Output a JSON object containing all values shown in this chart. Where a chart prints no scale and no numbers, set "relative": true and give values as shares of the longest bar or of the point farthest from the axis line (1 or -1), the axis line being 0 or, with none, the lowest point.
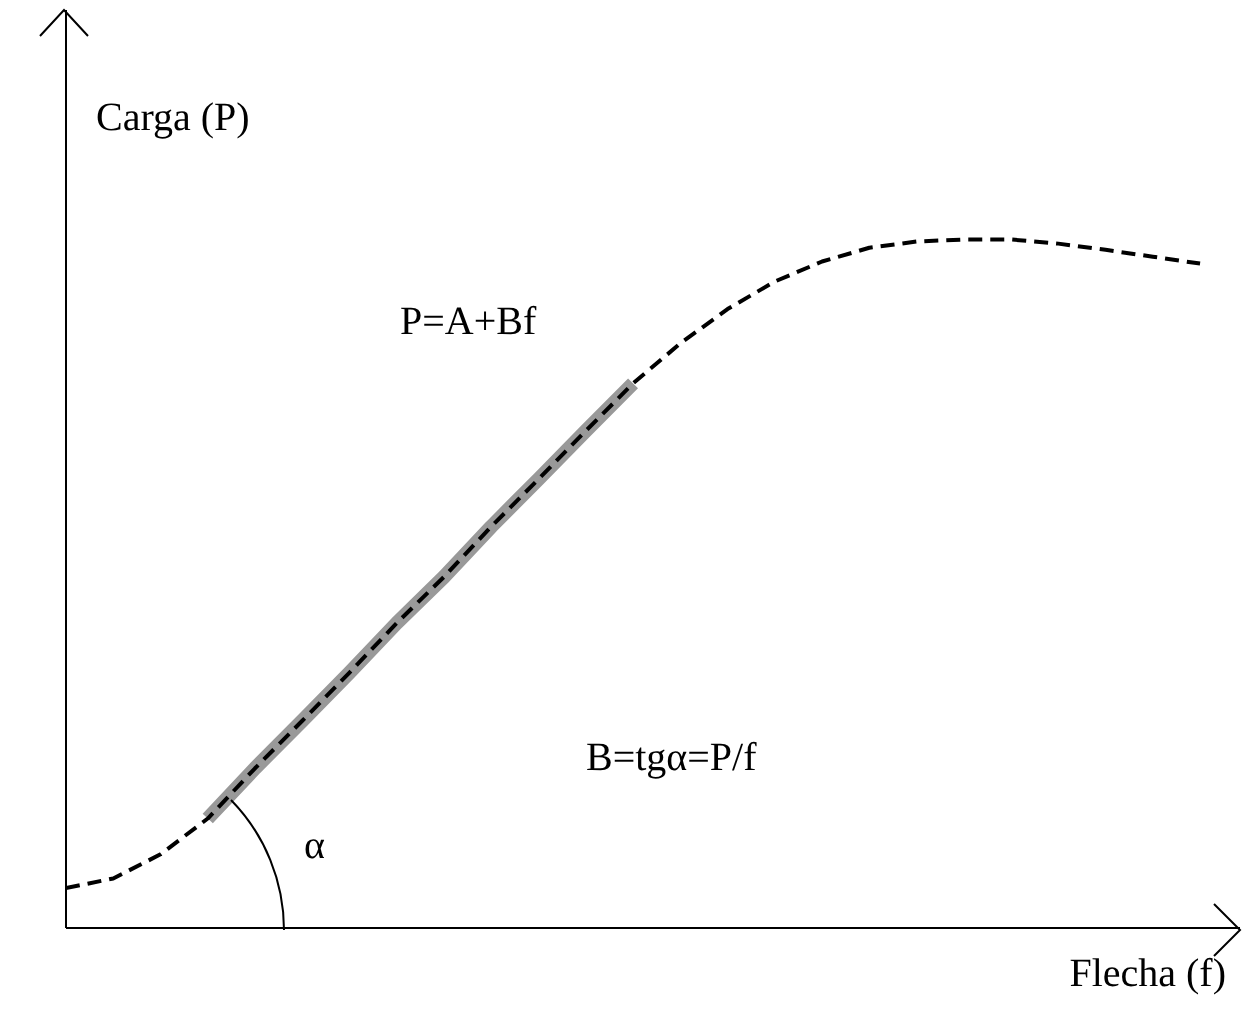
{
  "chart_data": {
    "type": "line",
    "relative": true,
    "xlabel": "Flecha (f)",
    "ylabel": "Carga (P)",
    "annotations": [
      "P=A+Bf",
      "B=tgα=P/f",
      "α"
    ],
    "categories": [
      null,
      null,
      null,
      null,
      null,
      null,
      null,
      null,
      null,
      null,
      null,
      null,
      null,
      null,
      null,
      null,
      null,
      null,
      null,
      null,
      null,
      null,
      null,
      null,
      null
    ],
    "series": [
      {
        "color": "#999999",
        "line_style": "solid",
        "values": [
          null,
          null,
          null,
          0.159,
          0.232,
          0.301,
          0.371,
          0.443,
          0.51,
          0.583,
          0.652,
          0.722,
          0.791,
          null,
          null,
          null,
          null,
          null,
          null,
          null,
          null,
          null,
          null,
          null,
          null
        ]
      },
      {
        "color": "#000000",
        "line_style": "dashed",
        "values": [
          0.058,
          0.072,
          0.107,
          0.159,
          0.232,
          0.301,
          0.371,
          0.443,
          0.51,
          0.583,
          0.652,
          0.722,
          0.791,
          0.849,
          0.899,
          0.939,
          0.968,
          0.988,
          0.997,
          1.0,
          1.0,
          0.994,
          0.985,
          0.975,
          0.965
        ]
      }
    ],
    "grid": false,
    "legend": false,
    "marker": "none"
  }
}
